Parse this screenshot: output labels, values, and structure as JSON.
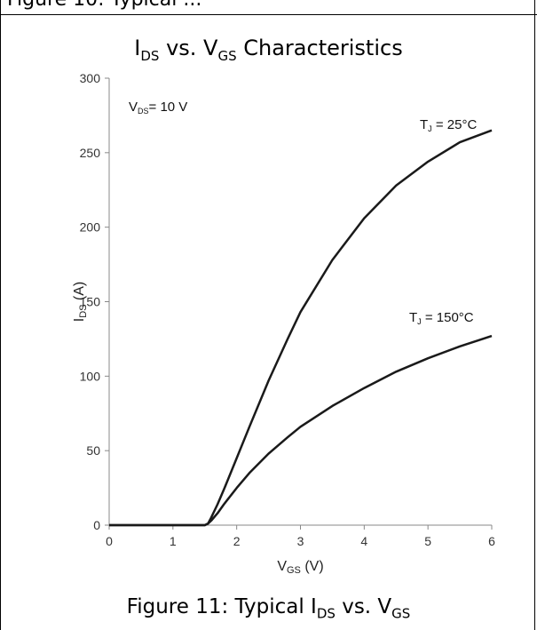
{
  "header": {
    "partial_text": "Figure 10: Typical ..."
  },
  "chart_data": {
    "type": "line",
    "title": {
      "main": "I",
      "sub": "DS",
      "mid": " vs. V",
      "sub2": "GS",
      "tail": " Characteristics"
    },
    "xlabel": {
      "main": "V",
      "sub": "GS",
      "tail": " (V)"
    },
    "ylabel": {
      "main": "I",
      "sub": "DS",
      "tail": " (A)"
    },
    "xlim": [
      0,
      6
    ],
    "ylim": [
      0,
      300
    ],
    "xticks": [
      0,
      1,
      2,
      3,
      4,
      5,
      6
    ],
    "yticks": [
      0,
      50,
      100,
      150,
      200,
      250,
      300
    ],
    "grid": false,
    "condition": {
      "main": "V",
      "sub": "DS",
      "tail": "= 10 V"
    },
    "series": [
      {
        "name": "TJ = 25°C",
        "label": {
          "main": "T",
          "sub": "J",
          "tail": " = 25°C"
        },
        "color": "#1a1a1a",
        "x": [
          0,
          1.0,
          1.5,
          1.55,
          1.6,
          1.7,
          1.8,
          2.0,
          2.2,
          2.5,
          2.8,
          3.0,
          3.5,
          4.0,
          4.5,
          5.0,
          5.5,
          6.0
        ],
        "y": [
          0,
          0,
          0,
          1,
          5,
          14,
          24,
          45,
          66,
          97,
          125,
          143,
          178,
          206,
          228,
          244,
          257,
          265
        ]
      },
      {
        "name": "TJ = 150°C",
        "label": {
          "main": "T",
          "sub": "J",
          "tail": " = 150°C"
        },
        "color": "#1a1a1a",
        "x": [
          0,
          1.0,
          1.5,
          1.55,
          1.6,
          1.7,
          1.8,
          2.0,
          2.2,
          2.5,
          2.8,
          3.0,
          3.5,
          4.0,
          4.5,
          5.0,
          5.5,
          6.0
        ],
        "y": [
          0,
          0,
          0,
          1,
          3,
          8,
          14,
          25,
          35,
          48,
          59,
          66,
          80,
          92,
          103,
          112,
          120,
          127
        ]
      }
    ]
  },
  "caption": {
    "main": "Figure 11: Typical I",
    "sub": "DS",
    "mid": " vs. V",
    "sub2": "GS"
  }
}
